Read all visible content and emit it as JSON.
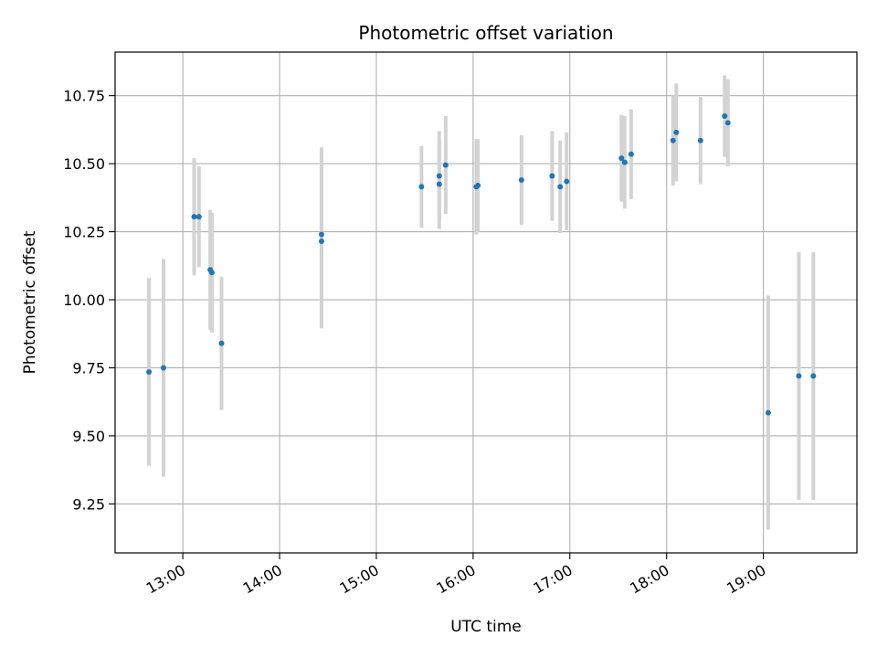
{
  "chart_data": {
    "type": "scatter",
    "title": "Photometric offset variation",
    "xlabel": "UTC time",
    "ylabel": "Photometric offset",
    "xlim": [
      "12:18",
      "19:58"
    ],
    "ylim": [
      9.07,
      10.91
    ],
    "x_ticks": [
      "13:00",
      "14:00",
      "15:00",
      "16:00",
      "17:00",
      "18:00",
      "19:00"
    ],
    "y_ticks": [
      "9.25",
      "9.50",
      "9.75",
      "10.00",
      "10.25",
      "10.50",
      "10.75"
    ],
    "grid": true,
    "legend": "none",
    "colors": {
      "points": "#1f77b4",
      "errorbars": "#d3d3d3",
      "grid": "#b0b0b0"
    },
    "points": [
      {
        "x": "12:39",
        "y": 9.735,
        "err": 0.345
      },
      {
        "x": "12:48",
        "y": 9.75,
        "err": 0.4
      },
      {
        "x": "13:07",
        "y": 10.305,
        "err": 0.215
      },
      {
        "x": "13:10",
        "y": 10.305,
        "err": 0.185
      },
      {
        "x": "13:17",
        "y": 10.11,
        "err": 0.22
      },
      {
        "x": "13:18",
        "y": 10.1,
        "err": 0.22
      },
      {
        "x": "13:24",
        "y": 9.84,
        "err": 0.245
      },
      {
        "x": "14:26",
        "y": 10.24,
        "err": 0.32
      },
      {
        "x": "14:26",
        "y": 10.215,
        "err": 0.32
      },
      {
        "x": "15:28",
        "y": 10.415,
        "err": 0.15
      },
      {
        "x": "15:39",
        "y": 10.425,
        "err": 0.165
      },
      {
        "x": "15:39",
        "y": 10.455,
        "err": 0.165
      },
      {
        "x": "15:43",
        "y": 10.495,
        "err": 0.18
      },
      {
        "x": "16:02",
        "y": 10.415,
        "err": 0.175
      },
      {
        "x": "16:03",
        "y": 10.42,
        "err": 0.17
      },
      {
        "x": "16:30",
        "y": 10.44,
        "err": 0.165
      },
      {
        "x": "16:49",
        "y": 10.455,
        "err": 0.165
      },
      {
        "x": "16:54",
        "y": 10.415,
        "err": 0.17
      },
      {
        "x": "16:58",
        "y": 10.435,
        "err": 0.18
      },
      {
        "x": "17:32",
        "y": 10.52,
        "err": 0.16
      },
      {
        "x": "17:34",
        "y": 10.505,
        "err": 0.17
      },
      {
        "x": "17:38",
        "y": 10.535,
        "err": 0.165
      },
      {
        "x": "18:04",
        "y": 10.585,
        "err": 0.165
      },
      {
        "x": "18:06",
        "y": 10.615,
        "err": 0.18
      },
      {
        "x": "18:21",
        "y": 10.585,
        "err": 0.16
      },
      {
        "x": "18:36",
        "y": 10.675,
        "err": 0.15
      },
      {
        "x": "18:38",
        "y": 10.65,
        "err": 0.16
      },
      {
        "x": "19:03",
        "y": 9.585,
        "err": 0.43
      },
      {
        "x": "19:22",
        "y": 9.72,
        "err": 0.455
      },
      {
        "x": "19:31",
        "y": 9.72,
        "err": 0.455
      }
    ]
  }
}
